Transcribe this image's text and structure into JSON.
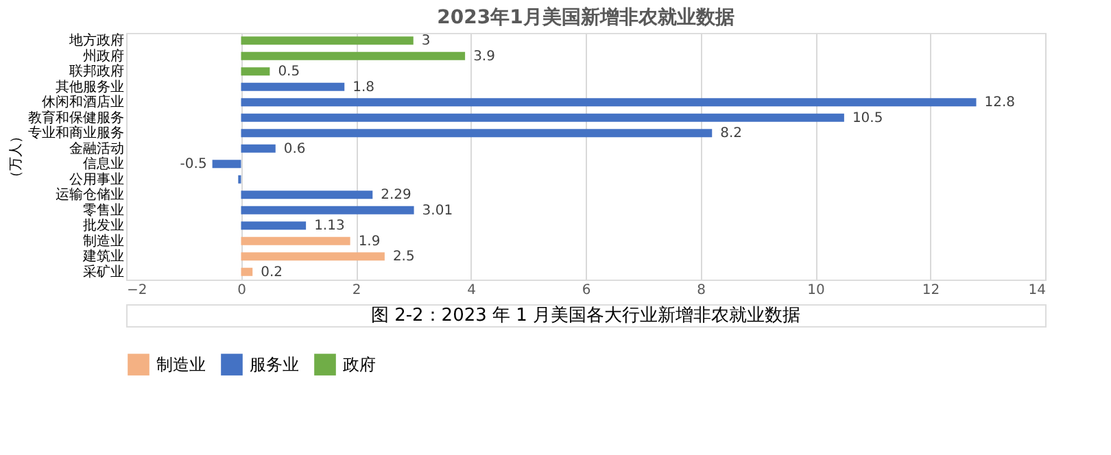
{
  "chart_data": {
    "type": "bar",
    "orientation": "horizontal",
    "title": "2023年1月美国新增非农就业数据",
    "ylabel": "（万人）",
    "categories": [
      "地方政府",
      "州政府",
      "联邦政府",
      "其他服务业",
      "休闲和酒店业",
      "教育和保健服务",
      "专业和商业服务",
      "金融活动",
      "信息业",
      "公用事业",
      "运输仓储业",
      "零售业",
      "批发业",
      "制造业",
      "建筑业",
      "采矿业"
    ],
    "series": [
      {
        "name": "制造业",
        "color": "#f4b183",
        "values": [
          null,
          null,
          null,
          null,
          null,
          null,
          null,
          null,
          null,
          null,
          null,
          null,
          null,
          1.9,
          2.5,
          0.2
        ],
        "value_labels": [
          null,
          null,
          null,
          null,
          null,
          null,
          null,
          null,
          null,
          null,
          null,
          null,
          null,
          "1.9",
          "2.5",
          "0.2"
        ]
      },
      {
        "name": "服务业",
        "color": "#4472c4",
        "values": [
          null,
          null,
          null,
          1.8,
          12.8,
          10.5,
          8.2,
          0.6,
          -0.5,
          -0.05,
          2.29,
          3.01,
          1.13,
          null,
          null,
          null
        ],
        "value_labels": [
          null,
          null,
          null,
          "1.8",
          "12.8",
          "10.5",
          "8.2",
          "0.6",
          "-0.5",
          null,
          "2.29",
          "3.01",
          "1.13",
          null,
          null,
          null
        ]
      },
      {
        "name": "政府",
        "color": "#70ad47",
        "values": [
          3,
          3.9,
          0.5,
          null,
          null,
          null,
          null,
          null,
          null,
          null,
          null,
          null,
          null,
          null,
          null,
          null
        ],
        "value_labels": [
          "3",
          "3.9",
          "0.5",
          null,
          null,
          null,
          null,
          null,
          null,
          null,
          null,
          null,
          null,
          null,
          null,
          null
        ]
      }
    ],
    "xlim": [
      -2,
      14
    ],
    "xticks": [
      -2,
      0,
      2,
      4,
      6,
      8,
      10,
      12,
      14
    ],
    "grid": "x",
    "legend": "bottom",
    "annotations": [
      "图 2-2：2023 年 1 月美国各大行业新增非农就业数据"
    ]
  }
}
